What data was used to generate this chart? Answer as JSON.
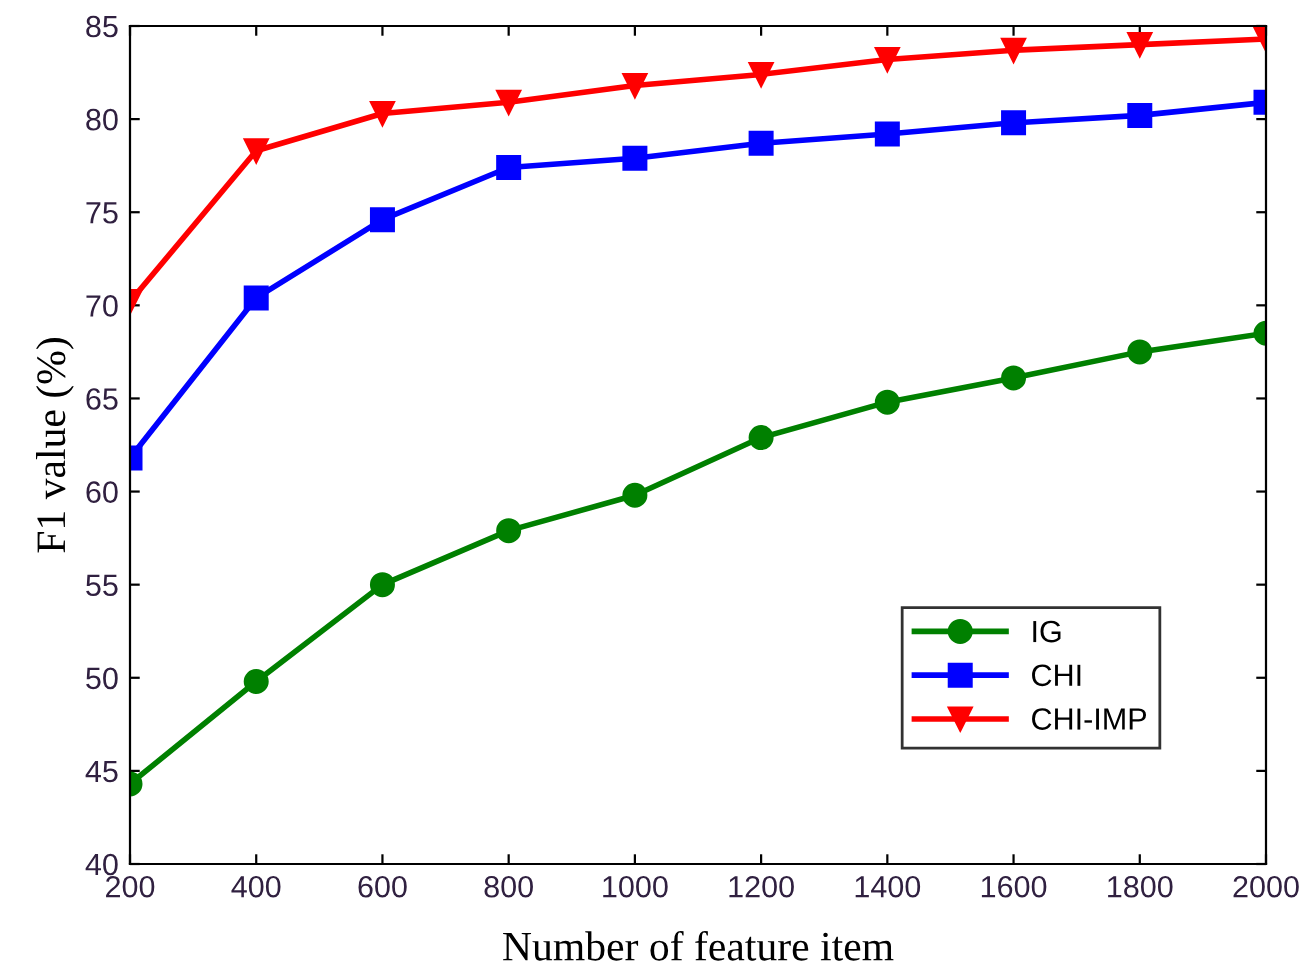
{
  "chart_data": {
    "type": "line",
    "xlabel": "Number of feature item",
    "ylabel": "F1 value (%)",
    "x": [
      200,
      400,
      600,
      800,
      1000,
      1200,
      1400,
      1600,
      1800,
      2000
    ],
    "series": [
      {
        "name": "IG",
        "color": "#008000",
        "marker": "circle",
        "values": [
          44.3,
          49.8,
          55.0,
          57.9,
          59.8,
          62.9,
          64.8,
          66.1,
          67.5,
          68.5
        ]
      },
      {
        "name": "CHI",
        "color": "#0000ff",
        "marker": "square",
        "values": [
          61.8,
          70.4,
          74.6,
          77.4,
          77.9,
          78.7,
          79.2,
          79.8,
          80.2,
          80.9
        ]
      },
      {
        "name": "CHI-IMP",
        "color": "#ff0000",
        "marker": "triangle",
        "values": [
          70.2,
          78.3,
          80.3,
          80.9,
          81.8,
          82.4,
          83.2,
          83.7,
          84.0,
          84.3
        ]
      }
    ],
    "xlim": [
      200,
      2000
    ],
    "xticks": [
      200,
      400,
      600,
      800,
      1000,
      1200,
      1400,
      1600,
      1800,
      2000
    ],
    "ylim": [
      40,
      85
    ],
    "yticks": [
      40,
      45,
      50,
      55,
      60,
      65,
      70,
      75,
      80,
      85
    ],
    "grid": false,
    "legend": "bottom right",
    "line_style": "solid"
  }
}
